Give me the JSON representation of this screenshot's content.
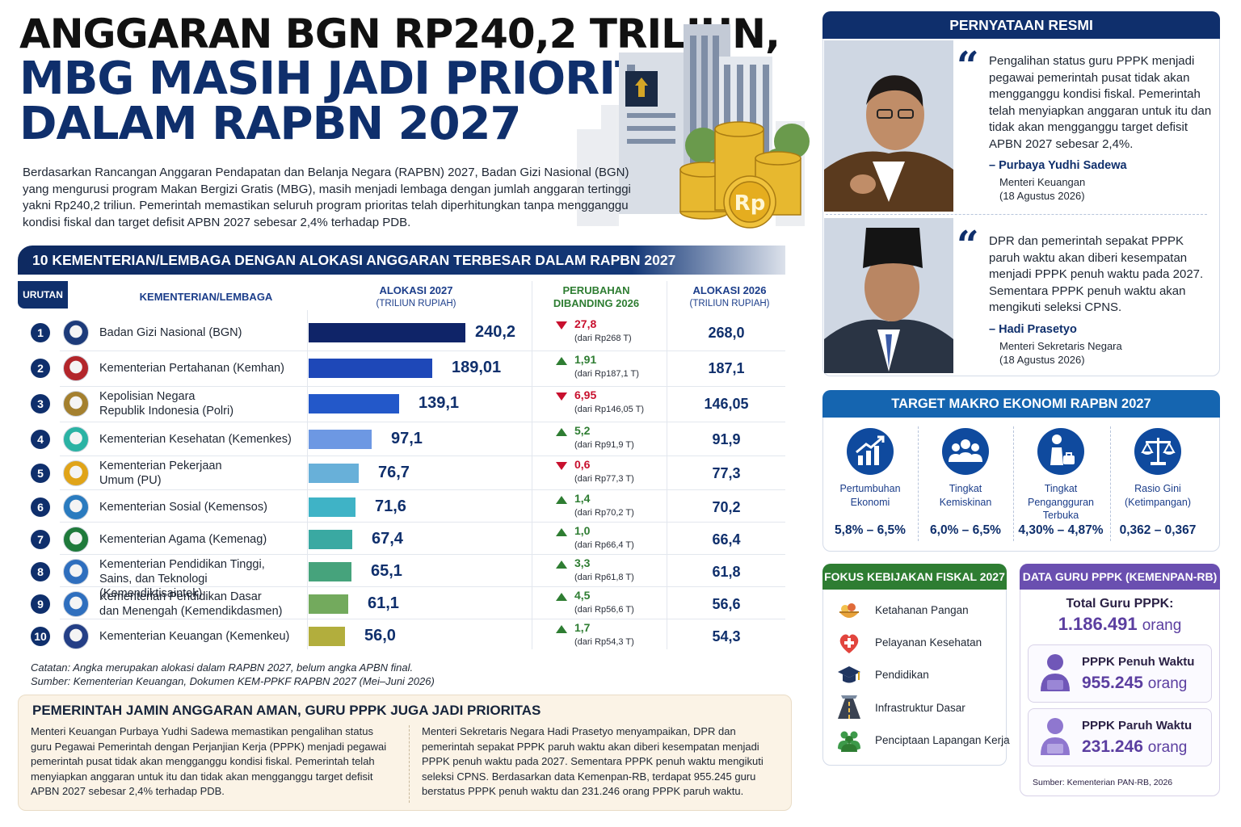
{
  "title": {
    "line1": "ANGGARAN BGN RP240,2 TRILIUN,",
    "line2": "MBG MASIH JADI PRIORITAS",
    "line3": "DALAM RAPBN 2027"
  },
  "intro": "Berdasarkan Rancangan Anggaran Pendapatan dan Belanja Negara (RAPBN) 2027, Badan Gizi Nasional (BGN) yang mengurusi program Makan Bergizi Gratis (MBG), masih menjadi lembaga dengan jumlah anggaran tertinggi yakni Rp240,2 triliun. Pemerintah memastikan seluruh program prioritas telah diperhitungkan tanpa mengganggu kondisi fiskal dan target defisit APBN 2027 sebesar 2,4% terhadap PDB.",
  "illustration": {
    "coin_symbol": "Rp"
  },
  "table": {
    "banner": "10 KEMENTERIAN/LEMBAGA DENGAN ALOKASI ANGGARAN TERBESAR DALAM RAPBN 2027",
    "headers": {
      "rank": "URUTAN",
      "ministry": "KEMENTERIAN/LEMBAGA",
      "alloc2027": "ALOKASI 2027",
      "alloc2027_sub": "(TRILIUN RUPIAH)",
      "change": "PERUBAHAN DIBANDING 2026",
      "alloc2026": "ALOKASI 2026",
      "alloc2026_sub": "(TRILIUN RUPIAH)"
    },
    "notes": {
      "line1": "Catatan: Angka merupakan alokasi dalam RAPBN 2027, belum angka APBN final.",
      "line2": "Sumber: Kementerian Keuangan, Dokumen KEM-PPKF RAPBN 2027 (Mei–Juni 2026)"
    }
  },
  "chart_data": {
    "type": "bar",
    "orientation": "horizontal",
    "title": "10 KEMENTERIAN/LEMBAGA DENGAN ALOKASI ANGGARAN TERBESAR DALAM RAPBN 2027",
    "xlabel": "ALOKASI 2027 (TRILIUN RUPIAH)",
    "xlim": [
      0,
      240.2
    ],
    "rows": [
      {
        "rank": "1",
        "name": "Badan Gizi Nasional (BGN)",
        "value": 240.2,
        "value_label": "240,2",
        "change_dir": "down",
        "change": "27,8",
        "from": "(dari Rp268 T)",
        "prev": "268,0",
        "color": "#0f2468",
        "logo": "#1d3b7a"
      },
      {
        "rank": "2",
        "name": "Kementerian Pertahanan (Kemhan)",
        "value": 189.01,
        "value_label": "189,01",
        "change_dir": "up",
        "change": "1,91",
        "from": "(dari Rp187,1 T)",
        "prev": "187,1",
        "color": "#1e48b8",
        "logo": "#b3262b"
      },
      {
        "rank": "3",
        "name": "Kepolisian Negara\nRepublik Indonesia (Polri)",
        "value": 139.1,
        "value_label": "139,1",
        "change_dir": "down",
        "change": "6,95",
        "from": "(dari Rp146,05 T)",
        "prev": "146,05",
        "color": "#2358c9",
        "logo": "#a4802f"
      },
      {
        "rank": "4",
        "name": "Kementerian Kesehatan (Kemenkes)",
        "value": 97.1,
        "value_label": "97,1",
        "change_dir": "up",
        "change": "5,2",
        "from": "(dari Rp91,9 T)",
        "prev": "91,9",
        "color": "#6d98e3",
        "logo": "#2bb3a4"
      },
      {
        "rank": "5",
        "name": "Kementerian Pekerjaan\nUmum (PU)",
        "value": 76.7,
        "value_label": "76,7",
        "change_dir": "down",
        "change": "0,6",
        "from": "(dari Rp77,3 T)",
        "prev": "77,3",
        "color": "#68b0d9",
        "logo": "#e0a419"
      },
      {
        "rank": "6",
        "name": "Kementerian Sosial (Kemensos)",
        "value": 71.6,
        "value_label": "71,6",
        "change_dir": "up",
        "change": "1,4",
        "from": "(dari Rp70,2 T)",
        "prev": "70,2",
        "color": "#3fb3c6",
        "logo": "#2a7bbf"
      },
      {
        "rank": "7",
        "name": "Kementerian Agama (Kemenag)",
        "value": 67.4,
        "value_label": "67,4",
        "change_dir": "up",
        "change": "1,0",
        "from": "(dari Rp66,4 T)",
        "prev": "66,4",
        "color": "#3aa9a2",
        "logo": "#1f7a3b"
      },
      {
        "rank": "8",
        "name": "Kementerian Pendidikan Tinggi,\nSains, dan Teknologi (Kemendiktisaintek)",
        "value": 65.1,
        "value_label": "65,1",
        "change_dir": "up",
        "change": "3,3",
        "from": "(dari Rp61,8 T)",
        "prev": "61,8",
        "color": "#46a37c",
        "logo": "#2f6fbe"
      },
      {
        "rank": "9",
        "name": "Kementerian Pendidikan Dasar\ndan Menengah (Kemendikdasmen)",
        "value": 61.1,
        "value_label": "61,1",
        "change_dir": "up",
        "change": "4,5",
        "from": "(dari Rp56,6 T)",
        "prev": "56,6",
        "color": "#73aa5d",
        "logo": "#2f6fbe"
      },
      {
        "rank": "10",
        "name": "Kementerian Keuangan (Kemenkeu)",
        "value": 56.0,
        "value_label": "56,0",
        "change_dir": "up",
        "change": "1,7",
        "from": "(dari Rp54,3 T)",
        "prev": "54,3",
        "color": "#b2ae3d",
        "logo": "#243f86"
      }
    ]
  },
  "bottom": {
    "title": "PEMERINTAH JAMIN ANGGARAN AMAN, GURU PPPK JUGA JADI PRIORITAS",
    "left": "Menteri Keuangan Purbaya Yudhi Sadewa memastikan pengalihan status guru Pegawai Pemerintah dengan Perjanjian Kerja (PPPK) menjadi pegawai pemerintah pusat tidak akan mengganggu kondisi fiskal. Pemerintah telah menyiapkan anggaran untuk itu dan tidak akan mengganggu target defisit APBN 2027 sebesar 2,4% terhadap PDB.",
    "right": "Menteri Sekretaris Negara Hadi Prasetyo menyampaikan, DPR dan pemerintah sepakat PPPK paruh waktu akan diberi kesempatan menjadi PPPK penuh waktu pada 2027. Sementara PPPK penuh waktu mengikuti seleksi CPNS. Berdasarkan data Kemenpan-RB, terdapat 955.245 guru berstatus PPPK penuh waktu dan 231.246 orang PPPK paruh waktu."
  },
  "statement": {
    "header": "PERNYATAAN RESMI",
    "quotes": [
      {
        "text": "Pengalihan status guru PPPK menjadi pegawai pemerintah pusat tidak akan mengganggu kondisi fiskal. Pemerintah telah menyiapkan anggaran untuk itu dan tidak akan mengganggu target defisit APBN 2027 sebesar 2,4%.",
        "name": "– Purbaya Yudhi Sadewa",
        "role": "Menteri Keuangan",
        "date": "(18 Agustus 2026)"
      },
      {
        "text": "DPR dan pemerintah sepakat PPPK paruh waktu akan diberi kesempatan menjadi PPPK penuh waktu pada 2027. Sementara PPPK penuh waktu akan mengikuti seleksi CPNS.",
        "name": "– Hadi Prasetyo",
        "role": "Menteri Sekretaris Negara",
        "date": "(18 Agustus 2026)"
      }
    ]
  },
  "macro": {
    "header": "TARGET MAKRO EKONOMI RAPBN 2027",
    "items": [
      {
        "icon": "growth-chart-icon",
        "label": "Pertumbuhan\nEkonomi",
        "value": "5,8% – 6,5%"
      },
      {
        "icon": "people-group-icon",
        "label": "Tingkat\nKemiskinan",
        "value": "6,0% – 6,5%"
      },
      {
        "icon": "unemployed-person-icon",
        "label": "Tingkat\nPengangguran\nTerbuka",
        "value": "4,30% – 4,87%"
      },
      {
        "icon": "balance-scale-icon",
        "label": "Rasio Gini\n(Ketimpangan)",
        "value": "0,362 – 0,367"
      }
    ]
  },
  "fiscal": {
    "header": "FOKUS KEBIJAKAN FISKAL 2027",
    "items": [
      {
        "icon": "food-bowl-icon",
        "label": "Ketahanan Pangan"
      },
      {
        "icon": "health-heart-icon",
        "label": "Pelayanan Kesehatan"
      },
      {
        "icon": "graduation-cap-icon",
        "label": "Pendidikan"
      },
      {
        "icon": "road-icon",
        "label": "Infrastruktur Dasar"
      },
      {
        "icon": "workers-icon",
        "label": "Penciptaan Lapangan Kerja"
      }
    ]
  },
  "pppk": {
    "header": "DATA GURU PPPK (KEMENPAN-RB)",
    "total_label": "Total Guru PPPK:",
    "total_value": "1.186.491",
    "unit": "orang",
    "full_label": "PPPK Penuh Waktu",
    "full_value": "955.245",
    "part_label": "PPPK Paruh Waktu",
    "part_value": "231.246",
    "source": "Sumber: Kementerian PAN-RB, 2026"
  },
  "colors": {
    "navy": "#0f2f6c",
    "accent_blue": "#1565b0",
    "green": "#2e7d32",
    "purple": "#6a4fb0",
    "red": "#c8102e"
  }
}
